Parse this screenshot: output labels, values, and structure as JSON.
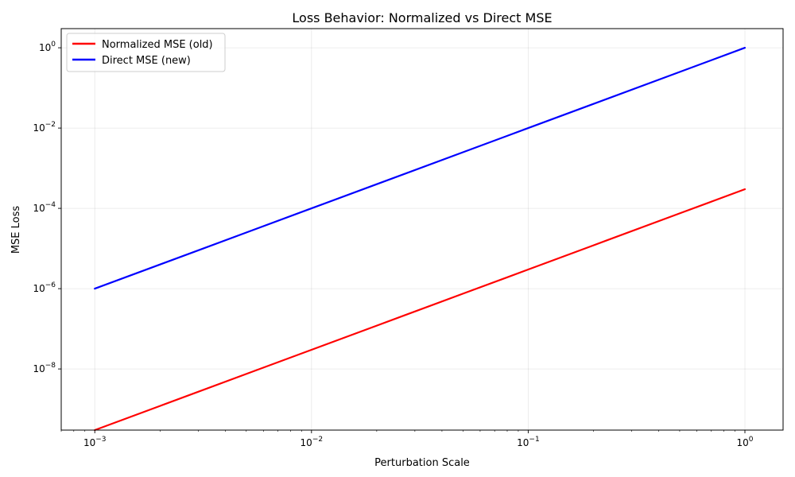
{
  "chart_data": {
    "type": "line",
    "title": "Loss Behavior: Normalized vs Direct MSE",
    "xlabel": "Perturbation Scale",
    "ylabel": "MSE Loss",
    "xscale": "log",
    "yscale": "log",
    "xlim": [
      0.0007,
      1.5
    ],
    "ylim": [
      3e-10,
      3
    ],
    "x_ticks": [
      {
        "value": 0.001,
        "base": "10",
        "exp": "−3"
      },
      {
        "value": 0.01,
        "base": "10",
        "exp": "−2"
      },
      {
        "value": 0.1,
        "base": "10",
        "exp": "−1"
      },
      {
        "value": 1,
        "base": "10",
        "exp": "0"
      }
    ],
    "y_ticks": [
      {
        "value": 1e-08,
        "base": "10",
        "exp": "−8"
      },
      {
        "value": 1e-06,
        "base": "10",
        "exp": "−6"
      },
      {
        "value": 0.0001,
        "base": "10",
        "exp": "−4"
      },
      {
        "value": 0.01,
        "base": "10",
        "exp": "−2"
      },
      {
        "value": 1,
        "base": "10",
        "exp": "0"
      }
    ],
    "grid": true,
    "legend_position": "top-left",
    "series": [
      {
        "name": "Normalized MSE (old)",
        "color": "#ff0000",
        "x": [
          0.001,
          0.002,
          0.005,
          0.01,
          0.02,
          0.05,
          0.1,
          0.2,
          0.5,
          1.0
        ],
        "y": [
          3e-10,
          1.2e-09,
          7.5e-09,
          3e-08,
          1.2e-07,
          7.5e-07,
          3e-06,
          1.2e-05,
          7.5e-05,
          0.0003
        ]
      },
      {
        "name": "Direct MSE (new)",
        "color": "#0000ff",
        "x": [
          0.001,
          0.002,
          0.005,
          0.01,
          0.02,
          0.05,
          0.1,
          0.2,
          0.5,
          1.0
        ],
        "y": [
          1e-06,
          4e-06,
          2.5e-05,
          0.0001,
          0.0004,
          0.0025,
          0.01,
          0.04,
          0.25,
          1.0
        ]
      }
    ]
  }
}
